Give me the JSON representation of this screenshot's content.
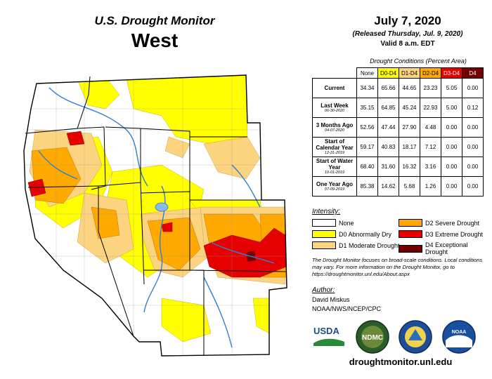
{
  "header": {
    "title": "U.S. Drought Monitor",
    "region": "West",
    "date": "July 7, 2020",
    "released": "(Released Thursday, Jul. 9, 2020)",
    "valid": "Valid 8 a.m. EDT"
  },
  "table": {
    "title": "Drought Conditions (Percent Area)",
    "columns": [
      "None",
      "D0-D4",
      "D1-D4",
      "D2-D4",
      "D3-D4",
      "D4"
    ],
    "column_colors": [
      "#ffffff",
      "#ffff00",
      "#fcd37f",
      "#ffaa00",
      "#e60000",
      "#730000"
    ],
    "rows": [
      {
        "label": "Current",
        "sub": "",
        "values": [
          "34.34",
          "65.66",
          "44.65",
          "23.23",
          "5.05",
          "0.00"
        ]
      },
      {
        "label": "Last Week",
        "sub": "06-30-2020",
        "values": [
          "35.15",
          "64.85",
          "45.24",
          "22.93",
          "5.00",
          "0.12"
        ]
      },
      {
        "label": "3 Months Ago",
        "sub": "04-07-2020",
        "values": [
          "52.56",
          "47.44",
          "27.90",
          "4.48",
          "0.00",
          "0.00"
        ]
      },
      {
        "label": "Start of Calendar Year",
        "sub": "12-31-2019",
        "values": [
          "59.17",
          "40.83",
          "18.17",
          "7.12",
          "0.00",
          "0.00"
        ]
      },
      {
        "label": "Start of Water Year",
        "sub": "10-01-2019",
        "values": [
          "68.40",
          "31.60",
          "16.32",
          "3.16",
          "0.00",
          "0.00"
        ]
      },
      {
        "label": "One Year Ago",
        "sub": "07-09-2019",
        "values": [
          "85.38",
          "14.62",
          "5.68",
          "1.26",
          "0.00",
          "0.00"
        ]
      }
    ]
  },
  "legend": {
    "title": "Intensity:",
    "items": [
      {
        "label": "None",
        "color": "#ffffff"
      },
      {
        "label": "D0 Abnormally Dry",
        "color": "#ffff00"
      },
      {
        "label": "D1 Moderate Drought",
        "color": "#fcd37f"
      },
      {
        "label": "D2 Severe Drought",
        "color": "#ffaa00"
      },
      {
        "label": "D3 Extreme Drought",
        "color": "#e60000"
      },
      {
        "label": "D4 Exceptional Drought",
        "color": "#730000"
      }
    ]
  },
  "note": "The Drought Monitor focuses on broad-scale conditions. Local conditions may vary. For more information on the Drought Monitor, go to https://droughtmonitor.unl.edu/About.aspx",
  "author": {
    "label": "Author:",
    "name": "David Miskus",
    "org": "NOAA/NWS/NCEP/CPC"
  },
  "logos": {
    "usda": "USDA",
    "ndmc": "NDMC",
    "noaa": "NOAA"
  },
  "website": "droughtmonitor.unl.edu",
  "colors": {
    "d0": "#ffff00",
    "d1": "#fcd37f",
    "d2": "#ffaa00",
    "d3": "#e60000",
    "d4": "#730000",
    "water": "#2f7fd6",
    "border": "#000000"
  }
}
